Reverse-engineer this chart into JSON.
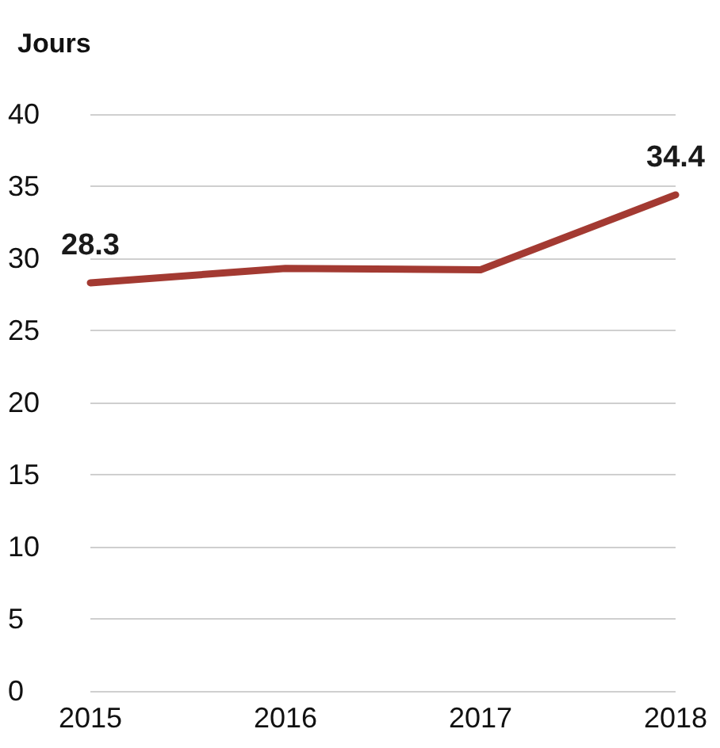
{
  "chart_data": {
    "type": "line",
    "ylabel": "Jours",
    "categories": [
      "2015",
      "2016",
      "2017",
      "2018"
    ],
    "series": [
      {
        "color": "#a33a32",
        "values": [
          28.3,
          29.3,
          29.2,
          34.4
        ],
        "value_labels": [
          "28.3",
          null,
          null,
          "34.4"
        ]
      }
    ],
    "ylim": [
      0,
      40
    ],
    "yticks": [
      0,
      5,
      10,
      15,
      20,
      25,
      30,
      35,
      40
    ],
    "grid": "y",
    "marker": "none",
    "line_style": "solid"
  }
}
